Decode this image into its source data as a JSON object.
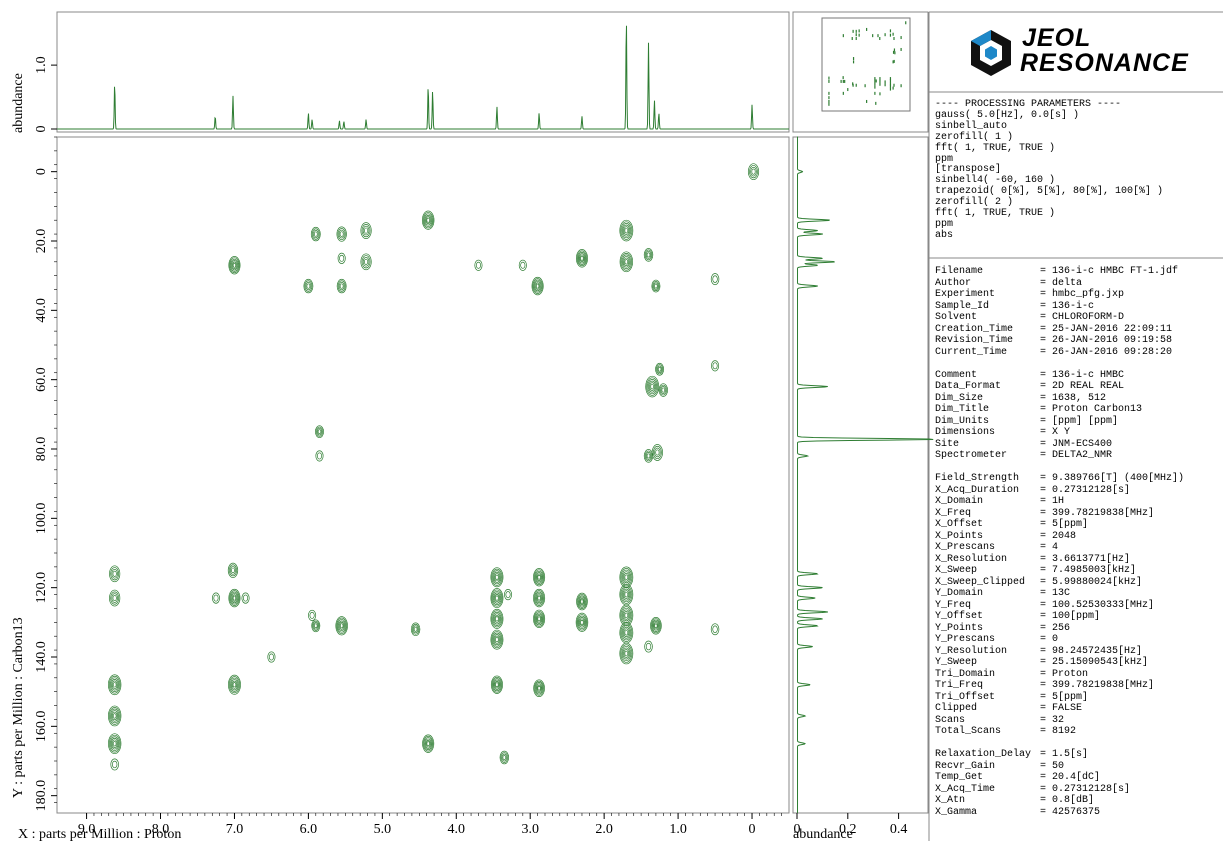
{
  "brand": {
    "line1": "JEOL",
    "line2": "RESONANCE"
  },
  "processing": {
    "header": "---- PROCESSING PARAMETERS ----",
    "lines": [
      "gauss( 5.0[Hz], 0.0[s] )",
      "sinbell_auto",
      "zerofill( 1 )",
      "fft( 1, TRUE, TRUE )",
      "ppm",
      "[transpose]",
      "sinbell4( -60, 160 )",
      "trapezoid( 0[%], 5[%], 80[%], 100[%] )",
      "zerofill( 2 )",
      "fft( 1, TRUE, TRUE )",
      "ppm",
      "abs"
    ]
  },
  "parameters": [
    {
      "key": "Filename",
      "value": "= 136-i-c HMBC FT-1.jdf"
    },
    {
      "key": "Author",
      "value": "= delta"
    },
    {
      "key": "Experiment",
      "value": "= hmbc_pfg.jxp"
    },
    {
      "key": "Sample_Id",
      "value": "= 136-i-c"
    },
    {
      "key": "Solvent",
      "value": "= CHLOROFORM-D"
    },
    {
      "key": "Creation_Time",
      "value": "= 25-JAN-2016 22:09:11"
    },
    {
      "key": "Revision_Time",
      "value": "= 26-JAN-2016 09:19:58"
    },
    {
      "key": "Current_Time",
      "value": "= 26-JAN-2016 09:28:20"
    },
    {
      "key": "",
      "value": ""
    },
    {
      "key": "Comment",
      "value": "= 136-i-c HMBC"
    },
    {
      "key": "Data_Format",
      "value": "= 2D REAL REAL"
    },
    {
      "key": "Dim_Size",
      "value": "= 1638, 512"
    },
    {
      "key": "Dim_Title",
      "value": "= Proton Carbon13"
    },
    {
      "key": "Dim_Units",
      "value": "= [ppm] [ppm]"
    },
    {
      "key": "Dimensions",
      "value": "= X Y"
    },
    {
      "key": "Site",
      "value": "= JNM-ECS400"
    },
    {
      "key": "Spectrometer",
      "value": "= DELTA2_NMR"
    },
    {
      "key": "",
      "value": ""
    },
    {
      "key": "Field_Strength",
      "value": "= 9.389766[T] (400[MHz])"
    },
    {
      "key": "X_Acq_Duration",
      "value": "= 0.27312128[s]"
    },
    {
      "key": "X_Domain",
      "value": "= 1H"
    },
    {
      "key": "X_Freq",
      "value": "= 399.78219838[MHz]"
    },
    {
      "key": "X_Offset",
      "value": "= 5[ppm]"
    },
    {
      "key": "X_Points",
      "value": "= 2048"
    },
    {
      "key": "X_Prescans",
      "value": "= 4"
    },
    {
      "key": "X_Resolution",
      "value": "= 3.6613771[Hz]"
    },
    {
      "key": "X_Sweep",
      "value": "= 7.4985003[kHz]"
    },
    {
      "key": "X_Sweep_Clipped",
      "value": "= 5.99880024[kHz]"
    },
    {
      "key": "Y_Domain",
      "value": "= 13C"
    },
    {
      "key": "Y_Freq",
      "value": "= 100.52530333[MHz]"
    },
    {
      "key": "Y_Offset",
      "value": "= 100[ppm]"
    },
    {
      "key": "Y_Points",
      "value": "= 256"
    },
    {
      "key": "Y_Prescans",
      "value": "= 0"
    },
    {
      "key": "Y_Resolution",
      "value": "= 98.24572435[Hz]"
    },
    {
      "key": "Y_Sweep",
      "value": "= 25.15090543[kHz]"
    },
    {
      "key": "Tri_Domain",
      "value": "= Proton"
    },
    {
      "key": "Tri_Freq",
      "value": "= 399.78219838[MHz]"
    },
    {
      "key": "Tri_Offset",
      "value": "= 5[ppm]"
    },
    {
      "key": "Clipped",
      "value": "= FALSE"
    },
    {
      "key": "Scans",
      "value": "= 32"
    },
    {
      "key": "Total_Scans",
      "value": "= 8192"
    },
    {
      "key": "",
      "value": ""
    },
    {
      "key": "Relaxation_Delay",
      "value": "= 1.5[s]"
    },
    {
      "key": "Recvr_Gain",
      "value": "= 50"
    },
    {
      "key": "Temp_Get",
      "value": "= 20.4[dC]"
    },
    {
      "key": "X_Acq_Time",
      "value": "= 0.27312128[s]"
    },
    {
      "key": "X_Atn",
      "value": "= 0.8[dB]"
    },
    {
      "key": "X_Gamma",
      "value": "= 42576375"
    }
  ],
  "chart_data": {
    "type": "heatmap",
    "color": "#2e7d32",
    "xlabel": "X : parts per Million : Proton",
    "ylabel": "Y : parts per Million : Carbon13",
    "xlim": [
      9.4,
      -0.5
    ],
    "ylim": [
      -10,
      185
    ],
    "xticks": [
      "9.0",
      "8.0",
      "7.0",
      "6.0",
      "5.0",
      "4.0",
      "3.0",
      "2.0",
      "1.0",
      "0"
    ],
    "yticks": [
      "0",
      "20.0",
      "40.0",
      "60.0",
      "80.0",
      "100.0",
      "120.0",
      "140.0",
      "160.0",
      "180.0"
    ],
    "top_projection": {
      "ylabel": "abundance",
      "yticks": [
        "0",
        "1.0"
      ],
      "peaks": [
        {
          "x": 8.62,
          "h": 0.72
        },
        {
          "x": 7.26,
          "h": 0.2
        },
        {
          "x": 7.02,
          "h": 0.52
        },
        {
          "x": 6.0,
          "h": 0.25
        },
        {
          "x": 5.95,
          "h": 0.15
        },
        {
          "x": 5.58,
          "h": 0.13
        },
        {
          "x": 5.52,
          "h": 0.12
        },
        {
          "x": 5.22,
          "h": 0.15
        },
        {
          "x": 4.38,
          "h": 0.68
        },
        {
          "x": 4.32,
          "h": 0.6
        },
        {
          "x": 3.45,
          "h": 0.35
        },
        {
          "x": 2.88,
          "h": 0.25
        },
        {
          "x": 2.3,
          "h": 0.2
        },
        {
          "x": 1.7,
          "h": 1.75
        },
        {
          "x": 1.4,
          "h": 1.35
        },
        {
          "x": 1.32,
          "h": 0.45
        },
        {
          "x": 1.26,
          "h": 0.25
        },
        {
          "x": 0.0,
          "h": 0.38
        }
      ]
    },
    "side_projection": {
      "xlabel": "abundance",
      "xticks": [
        "0",
        "0.2",
        "0.4"
      ],
      "peaks": [
        {
          "y": 0,
          "w": 0.02
        },
        {
          "y": 14,
          "w": 0.13
        },
        {
          "y": 17,
          "w": 0.08
        },
        {
          "y": 18,
          "w": 0.1
        },
        {
          "y": 25,
          "w": 0.1
        },
        {
          "y": 26,
          "w": 0.15
        },
        {
          "y": 27,
          "w": 0.08
        },
        {
          "y": 33,
          "w": 0.08
        },
        {
          "y": 62,
          "w": 0.12
        },
        {
          "y": 77.2,
          "w": 0.55
        },
        {
          "y": 82,
          "w": 0.04
        },
        {
          "y": 116,
          "w": 0.08
        },
        {
          "y": 120,
          "w": 0.1
        },
        {
          "y": 123,
          "w": 0.07
        },
        {
          "y": 127,
          "w": 0.12
        },
        {
          "y": 129,
          "w": 0.1
        },
        {
          "y": 131,
          "w": 0.08
        },
        {
          "y": 137,
          "w": 0.06
        },
        {
          "y": 148,
          "w": 0.05
        },
        {
          "y": 157,
          "w": 0.03
        },
        {
          "y": 165,
          "w": 0.03
        }
      ]
    },
    "cross_peaks": [
      {
        "x": -0.02,
        "y": 0,
        "s": 1
      },
      {
        "x": 4.38,
        "y": 14,
        "s": 1.3
      },
      {
        "x": 5.9,
        "y": 18,
        "s": 0.7
      },
      {
        "x": 5.55,
        "y": 18,
        "s": 0.8
      },
      {
        "x": 5.22,
        "y": 17,
        "s": 1
      },
      {
        "x": 1.7,
        "y": 17,
        "s": 1.6
      },
      {
        "x": 1.7,
        "y": 26,
        "s": 1.5
      },
      {
        "x": 7.0,
        "y": 27,
        "s": 1.2
      },
      {
        "x": 5.22,
        "y": 26,
        "s": 1
      },
      {
        "x": 2.3,
        "y": 25,
        "s": 1.2
      },
      {
        "x": 1.4,
        "y": 24,
        "s": 0.6
      },
      {
        "x": 5.55,
        "y": 25,
        "s": 0.3
      },
      {
        "x": 3.7,
        "y": 27,
        "s": 0.3
      },
      {
        "x": 3.1,
        "y": 27,
        "s": 0.3
      },
      {
        "x": 6.0,
        "y": 33,
        "s": 0.7
      },
      {
        "x": 5.55,
        "y": 33,
        "s": 0.7
      },
      {
        "x": 2.9,
        "y": 33,
        "s": 1.2
      },
      {
        "x": 1.3,
        "y": 33,
        "s": 0.5
      },
      {
        "x": 0.5,
        "y": 31,
        "s": 0.4
      },
      {
        "x": 1.35,
        "y": 62,
        "s": 1.6
      },
      {
        "x": 1.25,
        "y": 57,
        "s": 0.5
      },
      {
        "x": 1.2,
        "y": 63,
        "s": 0.6
      },
      {
        "x": 0.5,
        "y": 56,
        "s": 0.3
      },
      {
        "x": 5.85,
        "y": 75,
        "s": 0.5
      },
      {
        "x": 5.85,
        "y": 82,
        "s": 0.3
      },
      {
        "x": 1.28,
        "y": 81,
        "s": 1
      },
      {
        "x": 1.4,
        "y": 82,
        "s": 0.6
      },
      {
        "x": 8.62,
        "y": 116,
        "s": 1
      },
      {
        "x": 8.62,
        "y": 123,
        "s": 1
      },
      {
        "x": 7.02,
        "y": 115,
        "s": 0.8
      },
      {
        "x": 7.0,
        "y": 123,
        "s": 1.2
      },
      {
        "x": 7.25,
        "y": 123,
        "s": 0.3
      },
      {
        "x": 6.85,
        "y": 123,
        "s": 0.3
      },
      {
        "x": 3.45,
        "y": 117,
        "s": 1.4
      },
      {
        "x": 3.45,
        "y": 123,
        "s": 1.4
      },
      {
        "x": 3.45,
        "y": 129,
        "s": 1.4
      },
      {
        "x": 3.45,
        "y": 135,
        "s": 1.4
      },
      {
        "x": 3.45,
        "y": 148,
        "s": 1.2
      },
      {
        "x": 2.88,
        "y": 117,
        "s": 1.2
      },
      {
        "x": 2.88,
        "y": 123,
        "s": 1.2
      },
      {
        "x": 2.88,
        "y": 129,
        "s": 1.2
      },
      {
        "x": 2.88,
        "y": 149,
        "s": 1.1
      },
      {
        "x": 2.3,
        "y": 124,
        "s": 1.1
      },
      {
        "x": 2.3,
        "y": 130,
        "s": 1.3
      },
      {
        "x": 1.7,
        "y": 117,
        "s": 1.6
      },
      {
        "x": 1.7,
        "y": 122,
        "s": 1.6
      },
      {
        "x": 1.7,
        "y": 128,
        "s": 1.6
      },
      {
        "x": 1.7,
        "y": 133,
        "s": 1.6
      },
      {
        "x": 1.7,
        "y": 139,
        "s": 1.6
      },
      {
        "x": 1.3,
        "y": 131,
        "s": 1.1
      },
      {
        "x": 1.4,
        "y": 137,
        "s": 0.4
      },
      {
        "x": 5.55,
        "y": 131,
        "s": 1.3
      },
      {
        "x": 5.9,
        "y": 131,
        "s": 0.5
      },
      {
        "x": 5.95,
        "y": 128,
        "s": 0.3
      },
      {
        "x": 4.55,
        "y": 132,
        "s": 0.6
      },
      {
        "x": 0.5,
        "y": 132,
        "s": 0.4
      },
      {
        "x": 3.3,
        "y": 122,
        "s": 0.3
      },
      {
        "x": 6.5,
        "y": 140,
        "s": 0.3
      },
      {
        "x": 8.62,
        "y": 148,
        "s": 1.5
      },
      {
        "x": 8.62,
        "y": 157,
        "s": 1.5
      },
      {
        "x": 8.62,
        "y": 165,
        "s": 1.5
      },
      {
        "x": 8.62,
        "y": 171,
        "s": 0.4
      },
      {
        "x": 7.0,
        "y": 148,
        "s": 1.4
      },
      {
        "x": 4.38,
        "y": 165,
        "s": 1.2
      },
      {
        "x": 3.35,
        "y": 169,
        "s": 0.6
      }
    ]
  }
}
